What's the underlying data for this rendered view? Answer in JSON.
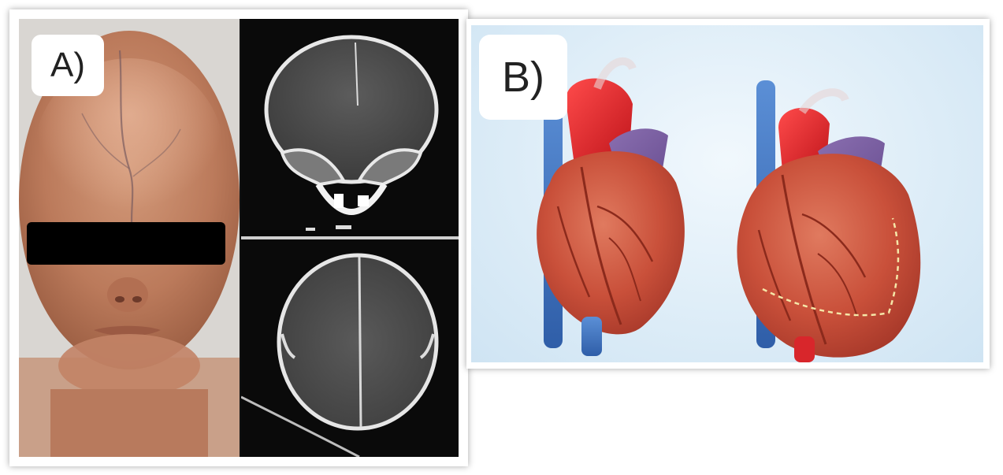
{
  "figure": {
    "panel_a": {
      "label": "A)",
      "photo_description_icon": "infant-face-photo-icon",
      "ct_scans": [
        "ct-axial-scan-icon",
        "ct-axial-scan-icon"
      ]
    },
    "panel_b": {
      "label": "B)",
      "illustrations": [
        "heart-illustration-icon",
        "heart-illustration-icon"
      ]
    }
  },
  "colors": {
    "skin": "#b77455",
    "censor_bar": "#000000",
    "ct_background": "#0a0a0a",
    "heart_red": "#c9503a",
    "aorta_red": "#d8262b",
    "vein_blue": "#3b6fb8",
    "background_blue": "#dcecf7",
    "dashed_line": "#f5e7a8"
  }
}
